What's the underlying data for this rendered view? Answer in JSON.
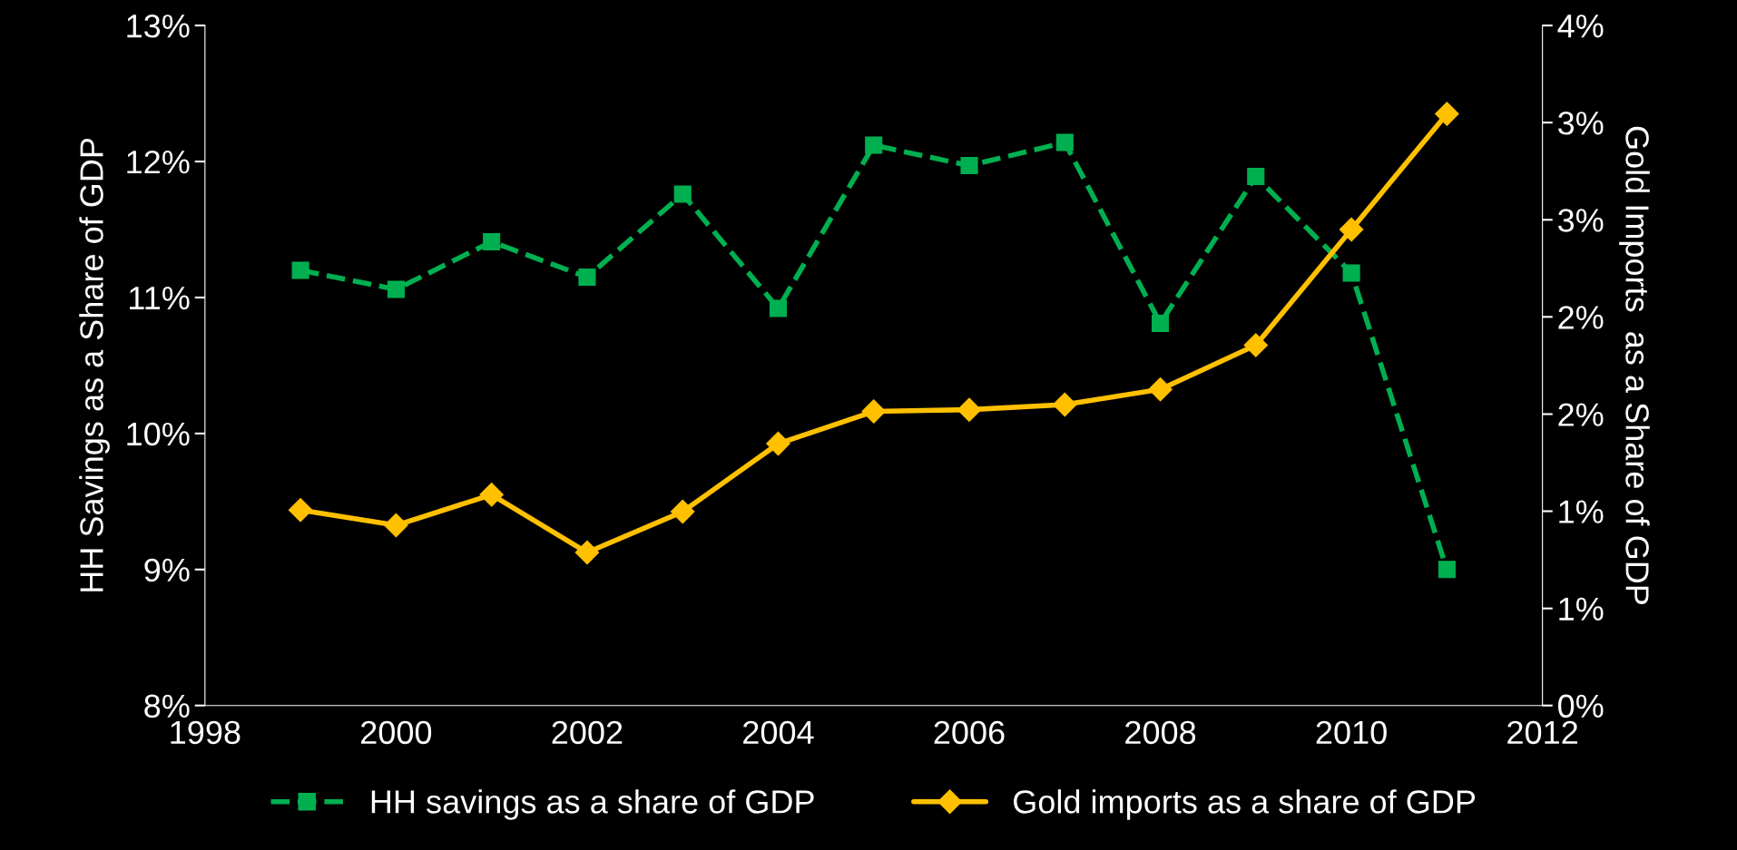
{
  "chart_data": {
    "type": "line",
    "x": [
      1999,
      2000,
      2001,
      2002,
      2003,
      2004,
      2005,
      2006,
      2007,
      2008,
      2009,
      2010,
      2011
    ],
    "series": [
      {
        "name": "HH savings as a share of GDP",
        "color": "#00b050",
        "marker": "square",
        "line_style": "dashed",
        "values": [
          11.2,
          11.06,
          11.41,
          11.15,
          11.76,
          10.92,
          12.12,
          11.97,
          12.14,
          10.81,
          11.89,
          11.18,
          9.0
        ]
      },
      {
        "name": "Gold imports as a share of GDP",
        "color": "#ffc000",
        "marker": "diamond",
        "line_style": "solid",
        "axis": "y2",
        "values": [
          1.15,
          1.06,
          1.24,
          0.9,
          1.14,
          1.54,
          1.73,
          1.74,
          1.77,
          1.86,
          2.12,
          2.8,
          3.48
        ]
      }
    ],
    "ylabel": "HH Savings as a Share of GDP",
    "y2label": "Gold Imports  as a Share of GDP",
    "xlim": [
      1998,
      2012
    ],
    "xticks": [
      1998,
      2000,
      2002,
      2004,
      2006,
      2008,
      2010,
      2012
    ],
    "ylim": [
      8,
      13
    ],
    "yticks": [
      {
        "value": 8,
        "label": "8%"
      },
      {
        "value": 9,
        "label": "9%"
      },
      {
        "value": 10,
        "label": "10%"
      },
      {
        "value": 11,
        "label": "11%"
      },
      {
        "value": 12,
        "label": "12%"
      },
      {
        "value": 13,
        "label": "13%"
      }
    ],
    "y2lim": [
      0,
      4
    ],
    "y2ticks": [
      {
        "value": 0,
        "label": "0%"
      },
      {
        "value": 0.571,
        "label": "1%"
      },
      {
        "value": 1.143,
        "label": "1%"
      },
      {
        "value": 1.714,
        "label": "2%"
      },
      {
        "value": 2.286,
        "label": "2%"
      },
      {
        "value": 2.857,
        "label": "3%"
      },
      {
        "value": 3.429,
        "label": "3%"
      },
      {
        "value": 4,
        "label": "4%"
      }
    ],
    "legend": "bottom",
    "grid": false
  }
}
